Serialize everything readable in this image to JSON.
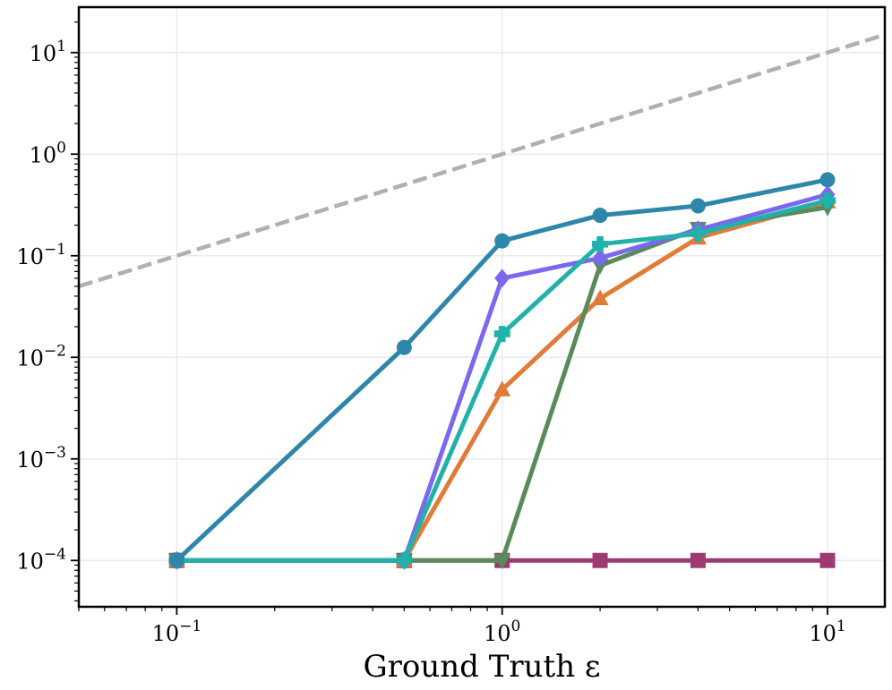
{
  "chart_data": {
    "type": "line",
    "title": "",
    "xlabel": "Ground Truth ε",
    "ylabel": "",
    "x_scale": "log",
    "y_scale": "log",
    "xlim": [
      0.05,
      15
    ],
    "ylim": [
      3.5e-05,
      28
    ],
    "grid": true,
    "legend": "none",
    "x_ticks": [
      {
        "base": "10",
        "exp": "−1",
        "value": 0.1
      },
      {
        "base": "10",
        "exp": "0",
        "value": 1
      },
      {
        "base": "10",
        "exp": "1",
        "value": 10
      }
    ],
    "y_ticks": [
      {
        "base": "10",
        "exp": "−4",
        "value": 0.0001
      },
      {
        "base": "10",
        "exp": "−3",
        "value": 0.001
      },
      {
        "base": "10",
        "exp": "−2",
        "value": 0.01
      },
      {
        "base": "10",
        "exp": "−1",
        "value": 0.1
      },
      {
        "base": "10",
        "exp": "0",
        "value": 1
      },
      {
        "base": "10",
        "exp": "1",
        "value": 10
      }
    ],
    "reference_line": {
      "style": "dashed",
      "color": "#b0b0b0",
      "x": [
        0.05,
        15
      ],
      "y": [
        0.05,
        15
      ]
    },
    "series": [
      {
        "color": "#9e3a72",
        "marker": "square",
        "x": [
          0.1,
          0.5,
          1,
          2,
          4,
          10
        ],
        "y": [
          0.0001,
          0.0001,
          0.0001,
          0.0001,
          0.0001,
          0.0001
        ]
      },
      {
        "color": "#e07b39",
        "marker": "triangle-up",
        "x": [
          0.1,
          0.5,
          1,
          2,
          4,
          10
        ],
        "y": [
          0.0001,
          0.0001,
          0.0048,
          0.038,
          0.15,
          0.34
        ]
      },
      {
        "color": "#5a8a5a",
        "marker": "triangle-down",
        "x": [
          0.1,
          0.5,
          1,
          2,
          4,
          10
        ],
        "y": [
          0.0001,
          0.0001,
          0.0001,
          0.08,
          0.185,
          0.3
        ]
      },
      {
        "color": "#7b68ee",
        "marker": "diamond",
        "x": [
          0.1,
          0.5,
          1,
          2,
          4,
          10
        ],
        "y": [
          0.0001,
          0.0001,
          0.06,
          0.095,
          0.18,
          0.4
        ]
      },
      {
        "color": "#20b2aa",
        "marker": "plus",
        "x": [
          0.1,
          0.5,
          1,
          2,
          4,
          10
        ],
        "y": [
          0.0001,
          0.0001,
          0.017,
          0.13,
          0.165,
          0.35
        ]
      },
      {
        "color": "#2e86ab",
        "marker": "circle",
        "x": [
          0.1,
          0.5,
          1,
          2,
          4,
          10
        ],
        "y": [
          0.0001,
          0.0125,
          0.14,
          0.25,
          0.31,
          0.56
        ]
      }
    ]
  }
}
